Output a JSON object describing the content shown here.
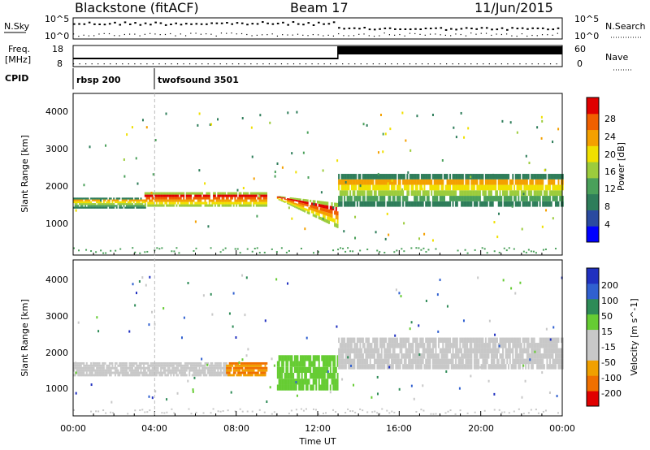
{
  "header": {
    "radar": "Blackstone (fitACF)",
    "beam": "Beam 17",
    "date": "11/Jun/2015"
  },
  "status_panels": {
    "nsky_label": "N.Sky",
    "nsearch_label": "N.Search",
    "freq_label": "Freq.",
    "freq_unit": "[MHz]",
    "nave_label": "Nave",
    "cpid_label": "CPID",
    "noise_ticks_left": [
      "10^5",
      "10^0"
    ],
    "noise_ticks_right": [
      "10^5",
      "10^0"
    ],
    "freq_ticks": [
      "18",
      "8"
    ],
    "nave_ticks": [
      "60",
      "0"
    ],
    "cpid_segments": [
      {
        "label": "rbsp 200",
        "start_hour": 0,
        "end_hour": 4
      },
      {
        "label": "twofsound 3501",
        "start_hour": 4,
        "end_hour": 24
      }
    ]
  },
  "chart_data": [
    {
      "type": "heatmap",
      "panel": "power",
      "ylabel": "Slant Range [km]",
      "xlabel": "Time UT",
      "xlim": [
        0,
        24
      ],
      "ylim": [
        180,
        4600
      ],
      "yticks": [
        "1000",
        "2000",
        "3000",
        "4000"
      ],
      "xticks": [
        "00:00",
        "04:00",
        "08:00",
        "12:00",
        "16:00",
        "20:00",
        "00:00"
      ],
      "colorbar": {
        "label": "Power [dB]",
        "ticks": [
          "4",
          "8",
          "12",
          "16",
          "20",
          "24",
          "28"
        ],
        "colors": [
          "#0000ff",
          "#2a4aa0",
          "#2e7d5a",
          "#4aa05a",
          "#9ccc3c",
          "#f0e000",
          "#f4a000",
          "#f06000",
          "#e00000"
        ]
      },
      "bands": [
        {
          "start_hour": 0.0,
          "end_hour": 3.5,
          "range_low": 1450,
          "range_high": 1750,
          "level": "medium"
        },
        {
          "start_hour": 3.5,
          "end_hour": 9.5,
          "range_low": 1500,
          "range_high": 1900,
          "level": "high"
        },
        {
          "start_hour": 10.0,
          "end_hour": 13.0,
          "range_low": 900,
          "range_high": 1800,
          "level": "high"
        },
        {
          "start_hour": 13.0,
          "end_hour": 24.0,
          "range_low": 1500,
          "range_high": 2400,
          "level": "medium"
        }
      ]
    },
    {
      "type": "heatmap",
      "panel": "velocity",
      "ylabel": "Slant Range [km]",
      "xlabel": "Time UT",
      "xlim": [
        0,
        24
      ],
      "ylim": [
        180,
        4600
      ],
      "yticks": [
        "1000",
        "2000",
        "3000",
        "4000"
      ],
      "xticks": [
        "00:00",
        "04:00",
        "08:00",
        "12:00",
        "16:00",
        "20:00",
        "00:00"
      ],
      "colorbar": {
        "label": "Velocity [m s^-1]",
        "ticks": [
          "200",
          "100",
          "50",
          "15",
          "-15",
          "-50",
          "-100",
          "-200"
        ],
        "colors": [
          "#2030c0",
          "#3060d0",
          "#2e8b57",
          "#66cc33",
          "#c8c8c8",
          "#c8c8c8",
          "#f0a000",
          "#f07000",
          "#e00000"
        ]
      },
      "bands": [
        {
          "start_hour": 0.0,
          "end_hour": 7.5,
          "range_low": 1300,
          "range_high": 1700,
          "level": "ground"
        },
        {
          "start_hour": 7.5,
          "end_hour": 9.5,
          "range_low": 1300,
          "range_high": 1700,
          "level": "negative"
        },
        {
          "start_hour": 10.0,
          "end_hour": 13.0,
          "range_low": 900,
          "range_high": 1900,
          "level": "positive"
        },
        {
          "start_hour": 13.0,
          "end_hour": 24.0,
          "range_low": 1500,
          "range_high": 2400,
          "level": "ground"
        }
      ]
    }
  ]
}
